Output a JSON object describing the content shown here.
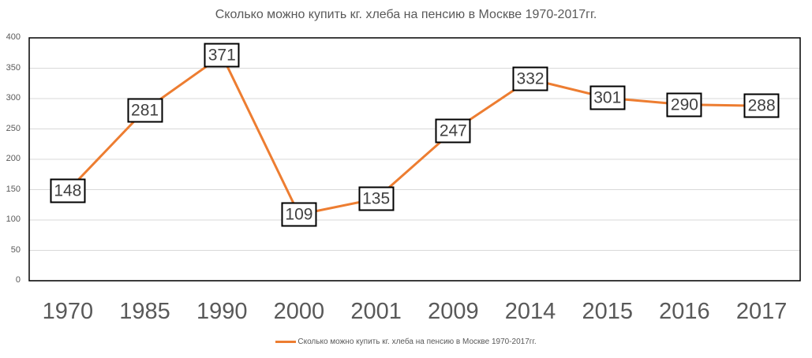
{
  "chart_data": {
    "type": "line",
    "title": "Сколько можно купить кг. хлеба на пенсию в Москве 1970-2017гг.",
    "xlabel": "",
    "ylabel": "",
    "categories": [
      "1970",
      "1985",
      "1990",
      "2000",
      "2001",
      "2009",
      "2014",
      "2015",
      "2016",
      "2017"
    ],
    "series": [
      {
        "name": "Сколько можно купить кг. хлеба на пенсию в Москве 1970-2017гг.",
        "color": "#ED7D31",
        "values": [
          148,
          281,
          371,
          109,
          135,
          247,
          332,
          301,
          290,
          288
        ]
      }
    ],
    "ylim": [
      0,
      400
    ],
    "yticks": [
      "0",
      "50",
      "100",
      "150",
      "200",
      "250",
      "300",
      "350",
      "400"
    ],
    "grid": true,
    "legend_position": "bottom",
    "data_labels": true
  },
  "legend": {
    "label": "Сколько можно купить кг. хлеба на пенсию в Москве 1970-2017гг."
  }
}
